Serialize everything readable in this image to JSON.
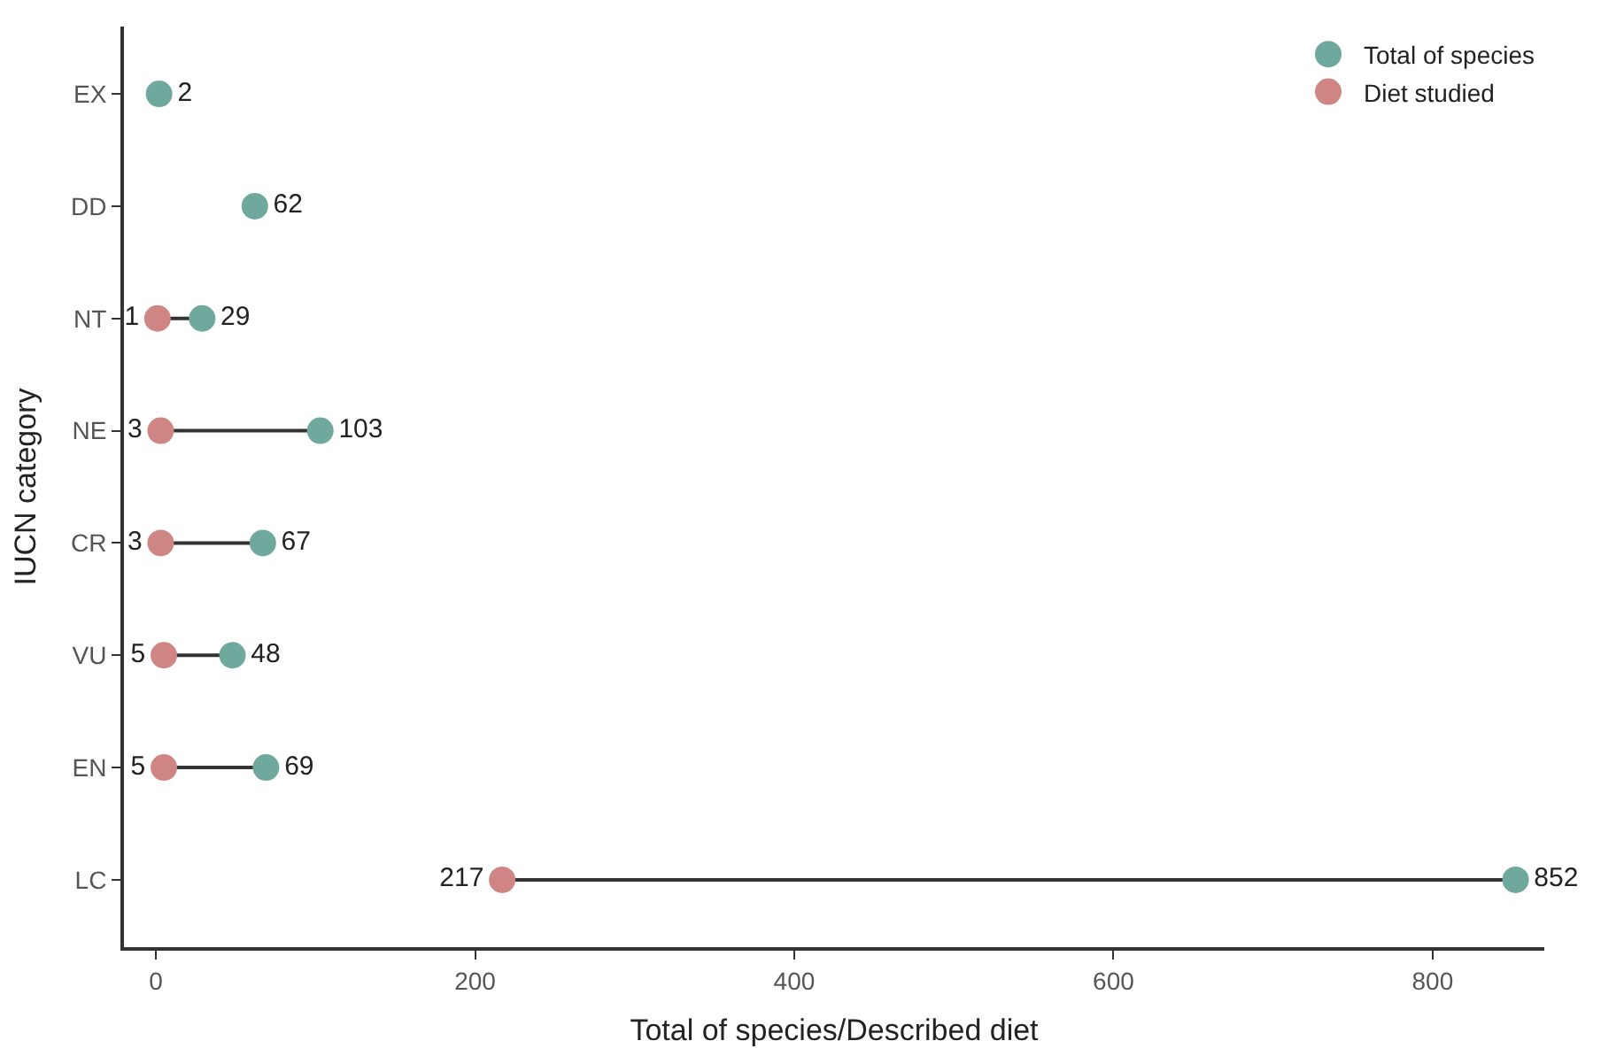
{
  "chart_data": {
    "type": "scatter",
    "orientation": "horizontal",
    "xlabel": "Total of species/Described diet",
    "ylabel": "IUCN category",
    "categories": [
      "EX",
      "DD",
      "NT",
      "NE",
      "CR",
      "VU",
      "EN",
      "LC"
    ],
    "series": [
      {
        "name": "Total of species",
        "color": "#6fa89c",
        "values": [
          2,
          62,
          29,
          103,
          67,
          48,
          69,
          852
        ]
      },
      {
        "name": "Diet studied",
        "color": "#d08585",
        "values": [
          null,
          null,
          1,
          3,
          3,
          5,
          5,
          217
        ]
      }
    ],
    "xlim": [
      -20,
      870
    ],
    "xticks": [
      0,
      200,
      400,
      600,
      800
    ],
    "data_labels": true,
    "legend": "top right",
    "marker": "circle"
  }
}
